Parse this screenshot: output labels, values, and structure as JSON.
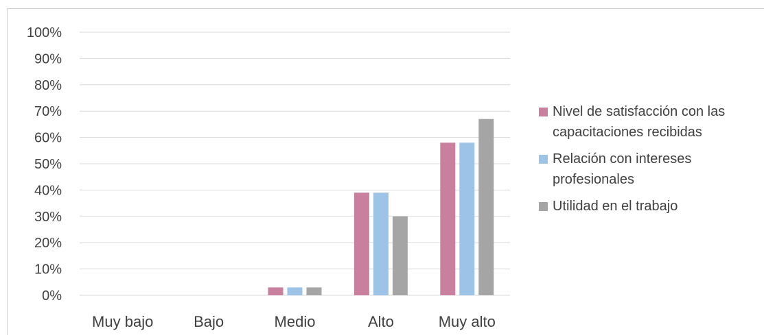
{
  "page": {
    "partial_title": ""
  },
  "colors": {
    "series": [
      "#c9809f",
      "#9dc3e6",
      "#a5a5a5"
    ],
    "grid": "#d9d9d9",
    "text": "#404040"
  },
  "chart_data": {
    "type": "bar",
    "categories": [
      "Muy bajo",
      "Bajo",
      "Medio",
      "Alto",
      "Muy alto"
    ],
    "series": [
      {
        "name": "Nivel de satisfacción con las capacitaciones recibidas",
        "values": [
          0,
          0,
          3,
          39,
          58
        ]
      },
      {
        "name": "Relación con intereses profesionales",
        "values": [
          0,
          0,
          3,
          39,
          58
        ]
      },
      {
        "name": "Utilidad en el trabajo",
        "values": [
          0,
          0,
          3,
          30,
          67
        ]
      }
    ],
    "ylim": [
      0,
      100
    ],
    "y_ticks": [
      "0%",
      "10%",
      "20%",
      "30%",
      "40%",
      "50%",
      "60%",
      "70%",
      "80%",
      "90%",
      "100%"
    ],
    "grid": true,
    "legend_position": "right"
  }
}
